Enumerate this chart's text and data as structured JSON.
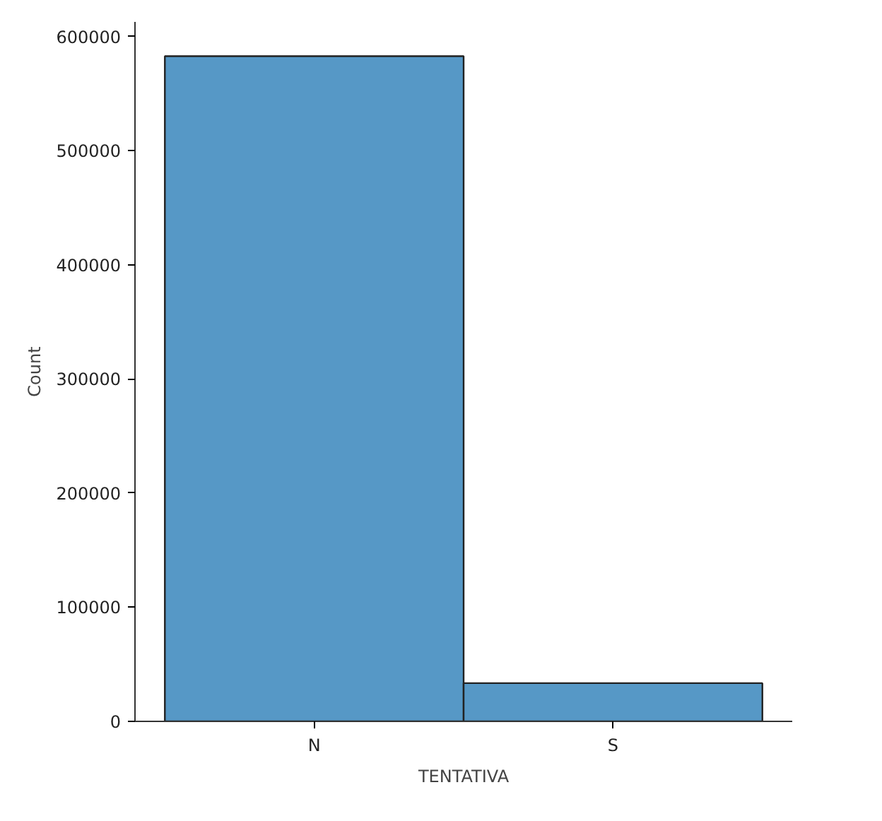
{
  "chart_data": {
    "type": "bar",
    "xlabel": "TENTATIVA",
    "ylabel": "Count",
    "categories": [
      "N",
      "S"
    ],
    "values": [
      583000,
      33500
    ],
    "color": "#5698c6",
    "ylim": [
      0,
      613000
    ],
    "yticks": [
      0,
      100000,
      200000,
      300000,
      400000,
      500000,
      600000
    ],
    "grid": false
  }
}
